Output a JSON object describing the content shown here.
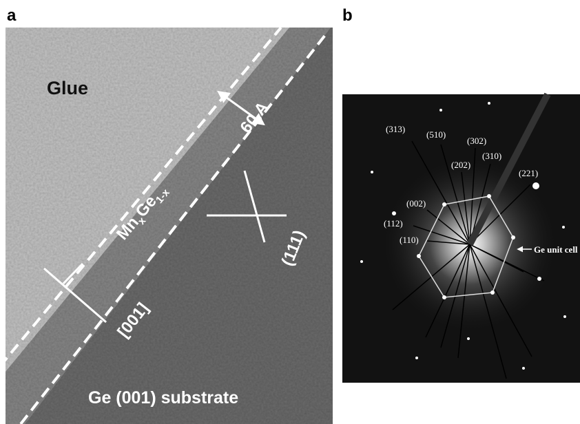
{
  "panels": [
    {
      "label": "a",
      "glue": "Glue",
      "layer": {
        "element1": "Mn",
        "subscript1": "x",
        "element2": "Ge",
        "subscript2": "1-x"
      },
      "thickness": "60 A",
      "direction": "[001]",
      "plane": "(111)",
      "substrate": "Ge (001) substrate"
    },
    {
      "label": "b",
      "reflections": [
        "(313)",
        "(510)",
        "(302)",
        "(202)",
        "(310)",
        "(221)",
        "(002)",
        "(112)",
        "(110)"
      ],
      "marker": "Ge unit cell"
    }
  ]
}
